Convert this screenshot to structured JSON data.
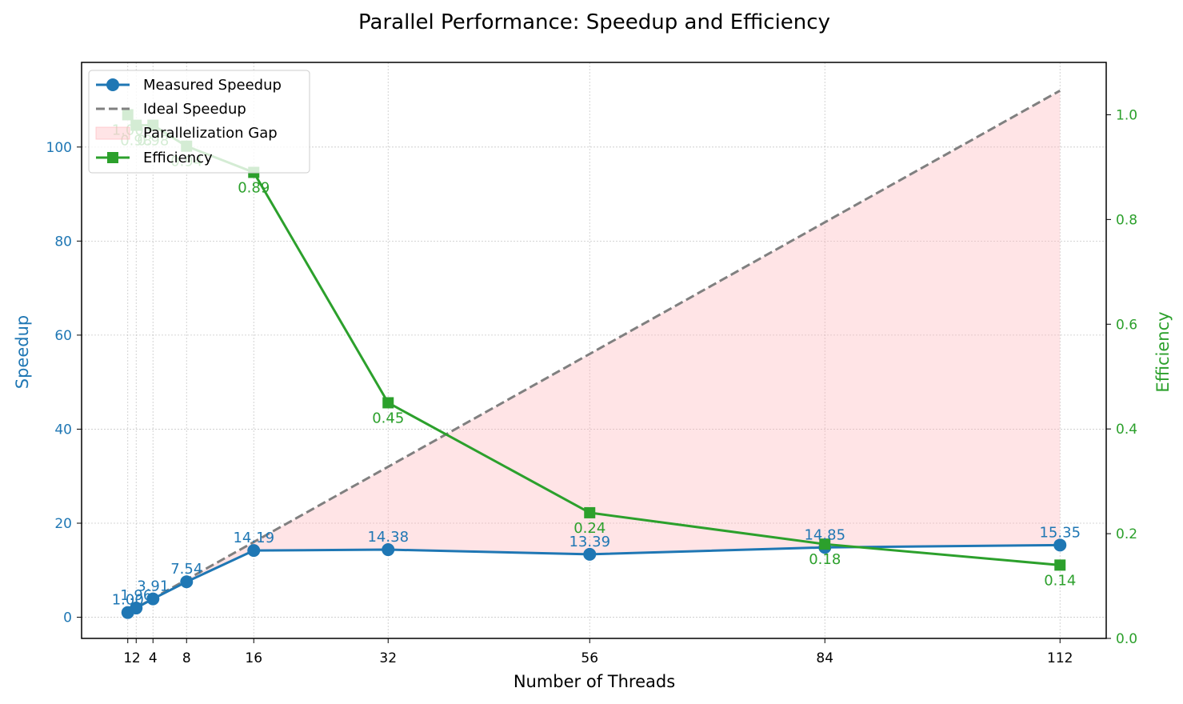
{
  "chart_data": {
    "type": "line",
    "title": "Parallel Performance: Speedup and Efficiency",
    "xlabel": "Number of Threads",
    "ylabel": "Speedup",
    "y2label": "Efficiency",
    "x": [
      1,
      2,
      4,
      8,
      16,
      32,
      56,
      84,
      112
    ],
    "xticks": [
      "1",
      "2",
      "4",
      "8",
      "16",
      "32",
      "56",
      "84",
      "112"
    ],
    "xlim": [
      -4.5,
      117.5
    ],
    "ylim": [
      -4.5,
      118
    ],
    "y2lim": [
      0.0,
      1.1
    ],
    "yticks": [
      0,
      20,
      40,
      60,
      80,
      100
    ],
    "y2ticks": [
      0.0,
      0.2,
      0.4,
      0.6,
      0.8,
      1.0
    ],
    "grid": true,
    "legend_position": "top-left",
    "series": [
      {
        "name": "Measured Speedup",
        "axis": "left",
        "style": "solid-circle",
        "color": "#1f77b4",
        "values": [
          1.0,
          1.96,
          3.91,
          7.54,
          14.19,
          14.38,
          13.39,
          14.85,
          15.35
        ],
        "labels": [
          "1.00",
          "1.96",
          "3.91",
          "7.54",
          "14.19",
          "14.38",
          "13.39",
          "14.85",
          "15.35"
        ]
      },
      {
        "name": "Ideal Speedup",
        "axis": "left",
        "style": "dashed",
        "color": "#808080",
        "values": [
          1,
          2,
          4,
          8,
          16,
          32,
          56,
          84,
          112
        ]
      },
      {
        "name": "Parallelization Gap",
        "axis": "left",
        "style": "fill-between",
        "color": "#ffb3b8",
        "between": [
          "Measured Speedup",
          "Ideal Speedup"
        ]
      },
      {
        "name": "Efficiency",
        "axis": "right",
        "style": "solid-square",
        "color": "#2ca02c",
        "values": [
          1.0,
          0.98,
          0.98,
          0.94,
          0.89,
          0.45,
          0.24,
          0.18,
          0.14
        ],
        "labels": [
          "1.00",
          "0.98",
          "0.98",
          "0.94",
          "0.89",
          "0.45",
          "0.24",
          "0.18",
          "0.14"
        ]
      }
    ]
  }
}
